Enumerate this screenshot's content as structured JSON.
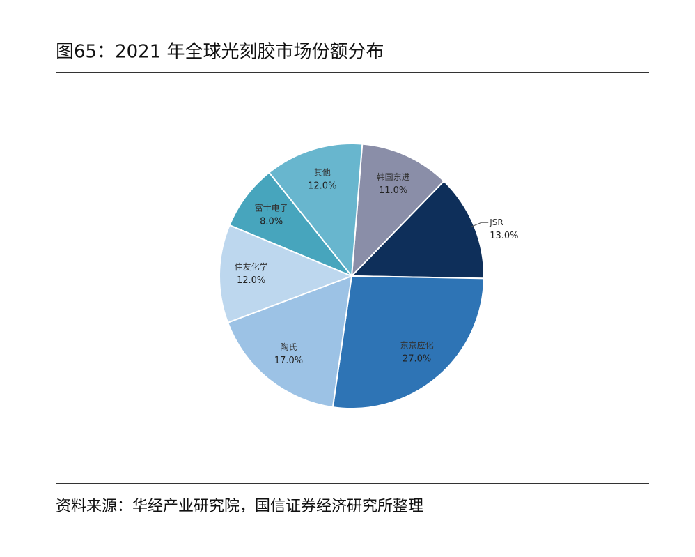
{
  "chart_data": {
    "type": "pie",
    "title": "图65：2021 年全球光刻胶市场份额分布",
    "categories": [
      "韩国东进",
      "JSR",
      "东京应化",
      "陶氏",
      "住友化学",
      "富士电子",
      "其他"
    ],
    "values": [
      11,
      13,
      27,
      17,
      12,
      8,
      12
    ],
    "value_labels": [
      "11.0%",
      "13.0%",
      "27.0%",
      "17.0%",
      "12.0%",
      "8.0%",
      "12.0%"
    ],
    "colors": [
      "#8a8ea8",
      "#0e2f5a",
      "#2e74b5",
      "#9cc2e5",
      "#bdd7ee",
      "#47a5bd",
      "#68b6ce"
    ],
    "source": "资料来源：华经产业研究院，国信证券经济研究所整理"
  }
}
